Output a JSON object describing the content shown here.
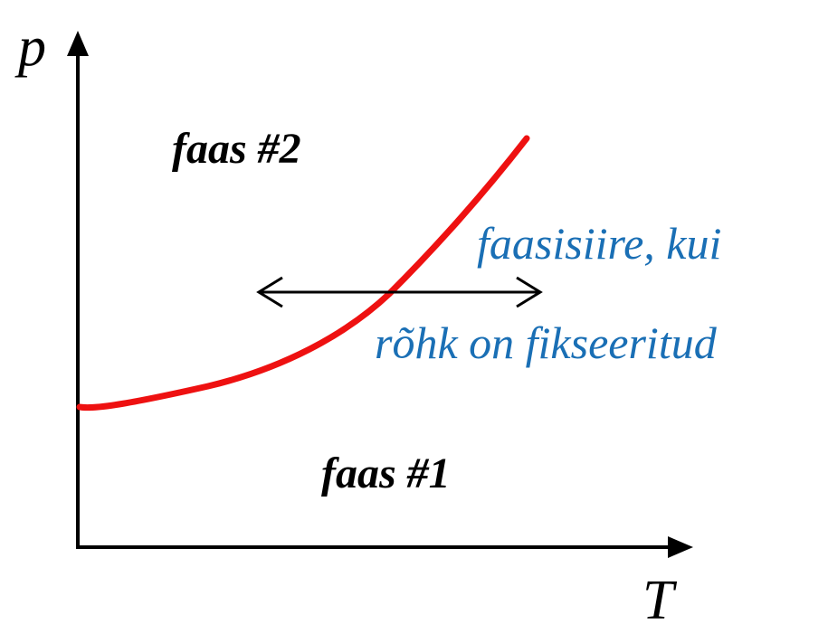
{
  "axes": {
    "y_label": "p",
    "x_label": "T"
  },
  "regions": {
    "upper": "faas #2",
    "lower": "faas #1"
  },
  "annotation": {
    "line1": "faasisiire, kui",
    "line2": "rõhk on fikseeritud"
  },
  "colors": {
    "axis": "#000000",
    "curve": "#ee1111",
    "annotation": "#1a6fb5",
    "arrow": "#000000",
    "text": "#000000"
  },
  "icons": {
    "y_axis_head": "arrow-up-icon",
    "x_axis_head": "arrow-right-icon",
    "transition_arrow": "double-arrow-icon"
  }
}
